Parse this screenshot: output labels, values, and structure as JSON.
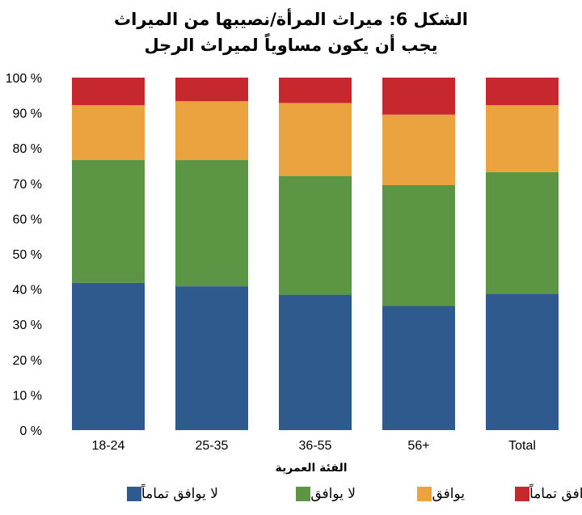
{
  "chart_data": {
    "type": "bar",
    "stacked": true,
    "title": [
      "الشكل 6: ميراث المرأة/نصيبها من الميراث",
      "يجب أن يكون مساوياً لميراث الرجل"
    ],
    "xlabel": "الفئة العمرية",
    "ylabel": "",
    "ylim": [
      0,
      100
    ],
    "yticks": [
      "0 %",
      "10 %",
      "20 %",
      "30 %",
      "40 %",
      "50 %",
      "60 %",
      "70 %",
      "80 %",
      "90 %",
      "100 %"
    ],
    "categories": [
      "18-24",
      "25-35",
      "36-55",
      "56+",
      "Total"
    ],
    "series": [
      {
        "name": "لا يوافق تماماً",
        "color": "#2e5a8e",
        "values": [
          41.8,
          40.8,
          38.4,
          35.2,
          38.7
        ]
      },
      {
        "name": "لا يوافق",
        "color": "#5c9644",
        "values": [
          34.8,
          35.8,
          33.7,
          34.3,
          34.5
        ]
      },
      {
        "name": "يوافق",
        "color": "#eaa33e",
        "values": [
          15.6,
          16.7,
          20.7,
          20.0,
          19.0
        ]
      },
      {
        "name": "يوافق تماماً",
        "color": "#c6282d",
        "values": [
          7.8,
          6.7,
          7.2,
          10.5,
          7.8
        ]
      }
    ],
    "legend_position": "bottom",
    "grid": false
  }
}
